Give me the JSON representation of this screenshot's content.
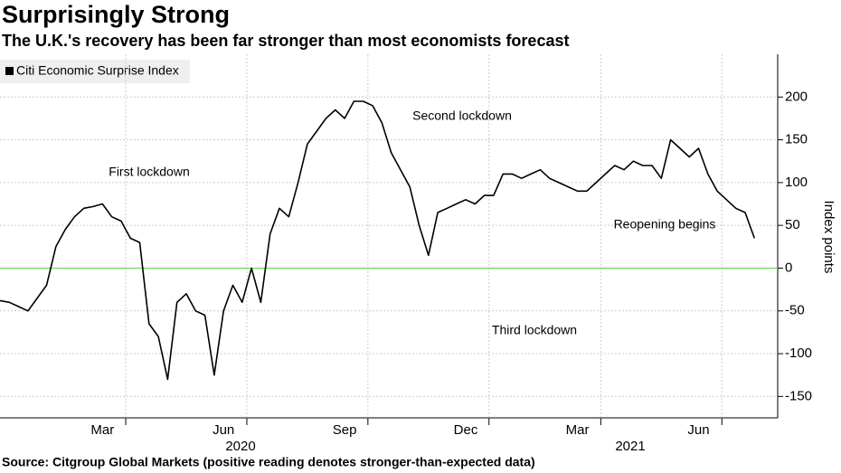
{
  "chart_data": {
    "type": "line",
    "title": "Surprisingly Strong",
    "subtitle": "The U.K.'s recovery has been far stronger than most economists forecast",
    "source": "Source: Citgroup Global Markets (positive reading denotes stronger-than-expected data)",
    "y_label": "Index points",
    "categories": [
      null,
      null,
      null,
      null,
      null,
      null,
      null,
      null,
      null,
      null,
      null,
      "Mar",
      null,
      null,
      null,
      null,
      null,
      null,
      null,
      null,
      null,
      null,
      null,
      null,
      "Jun",
      null,
      null,
      null,
      null,
      null,
      null,
      null,
      null,
      null,
      null,
      null,
      null,
      "Sep",
      null,
      null,
      null,
      null,
      null,
      null,
      null,
      null,
      null,
      null,
      null,
      null,
      "Dec",
      null,
      null,
      null,
      null,
      null,
      null,
      null,
      null,
      null,
      null,
      null,
      "Mar",
      null,
      null,
      null,
      null,
      null,
      null,
      null,
      null,
      null,
      null,
      null,
      null,
      "Jun",
      null,
      null,
      null,
      null,
      null,
      null
    ],
    "years": [
      "2020",
      "2021"
    ],
    "series": [
      {
        "name": "Citi Economic Surprise Index",
        "color": "#000000",
        "values": [
          -38,
          -40,
          -45,
          -50,
          -35,
          -20,
          25,
          45,
          60,
          70,
          72,
          75,
          60,
          55,
          35,
          30,
          -65,
          -80,
          -130,
          -40,
          -30,
          -50,
          -55,
          -125,
          -50,
          -20,
          -40,
          0,
          -40,
          40,
          70,
          60,
          100,
          145,
          160,
          175,
          185,
          175,
          195,
          195,
          190,
          170,
          135,
          115,
          95,
          50,
          15,
          65,
          70,
          75,
          80,
          75,
          85,
          85,
          110,
          110,
          105,
          110,
          115,
          105,
          100,
          95,
          90,
          90,
          100,
          110,
          120,
          115,
          125,
          120,
          120,
          105,
          150,
          140,
          130,
          140,
          110,
          90,
          80,
          70,
          65,
          35
        ]
      }
    ],
    "annotations": [
      "First lockdown",
      "Second lockdown",
      "Third lockdown",
      "Reopening begins"
    ],
    "ylim": [
      -175,
      250
    ],
    "yticks": [
      -150,
      -100,
      -50,
      0,
      50,
      100,
      150,
      200
    ],
    "grid": true,
    "zero_line_color": "#66dd55"
  }
}
